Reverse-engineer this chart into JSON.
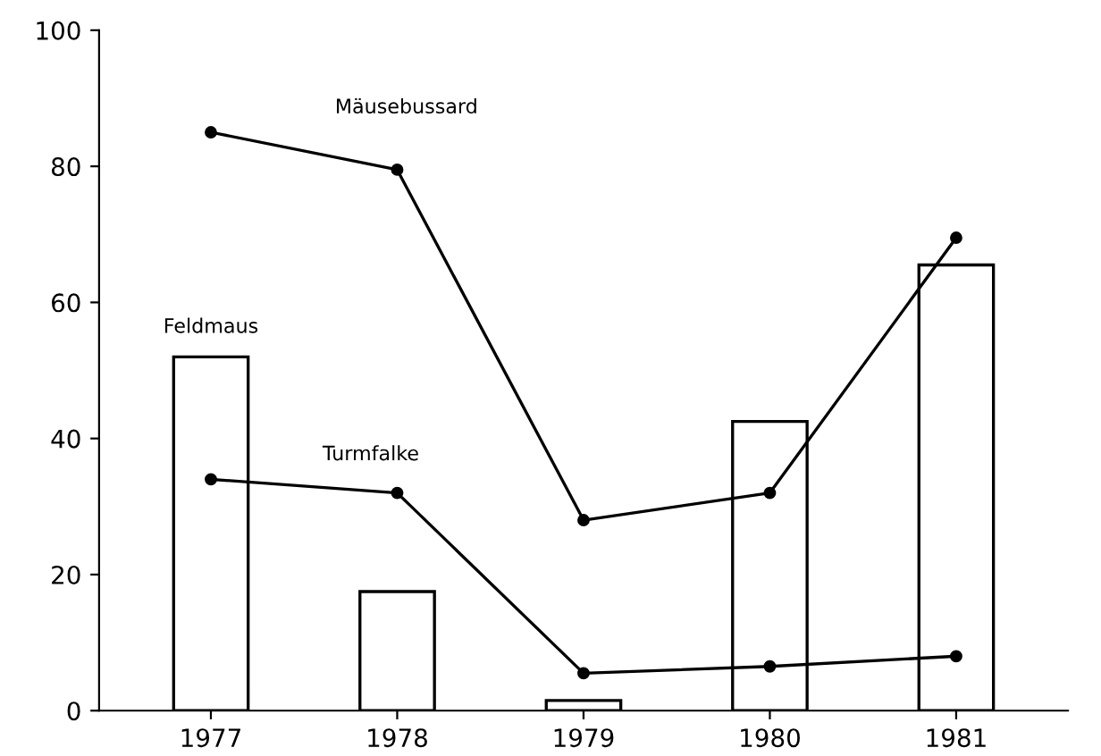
{
  "chart_data": {
    "type": "bar",
    "categories": [
      "1977",
      "1978",
      "1979",
      "1980",
      "1981"
    ],
    "series": [
      {
        "name": "Feldmaus",
        "color": "#ffffff",
        "values": [
          52,
          17.5,
          1.5,
          42.5,
          65.5
        ]
      },
      {
        "name": "Mäusebussard",
        "type": "line",
        "color": "#000000",
        "values": [
          85,
          79.5,
          28,
          32,
          69.5
        ]
      },
      {
        "name": "Turmfalke",
        "type": "line",
        "color": "#000000",
        "values": [
          34,
          32,
          5.5,
          6.5,
          8
        ]
      }
    ],
    "ylim": [
      0,
      100
    ],
    "yticks": [
      0,
      20,
      40,
      60,
      80,
      100
    ],
    "grid": false,
    "legend": false,
    "marker": "circle",
    "line_style": "solid"
  }
}
